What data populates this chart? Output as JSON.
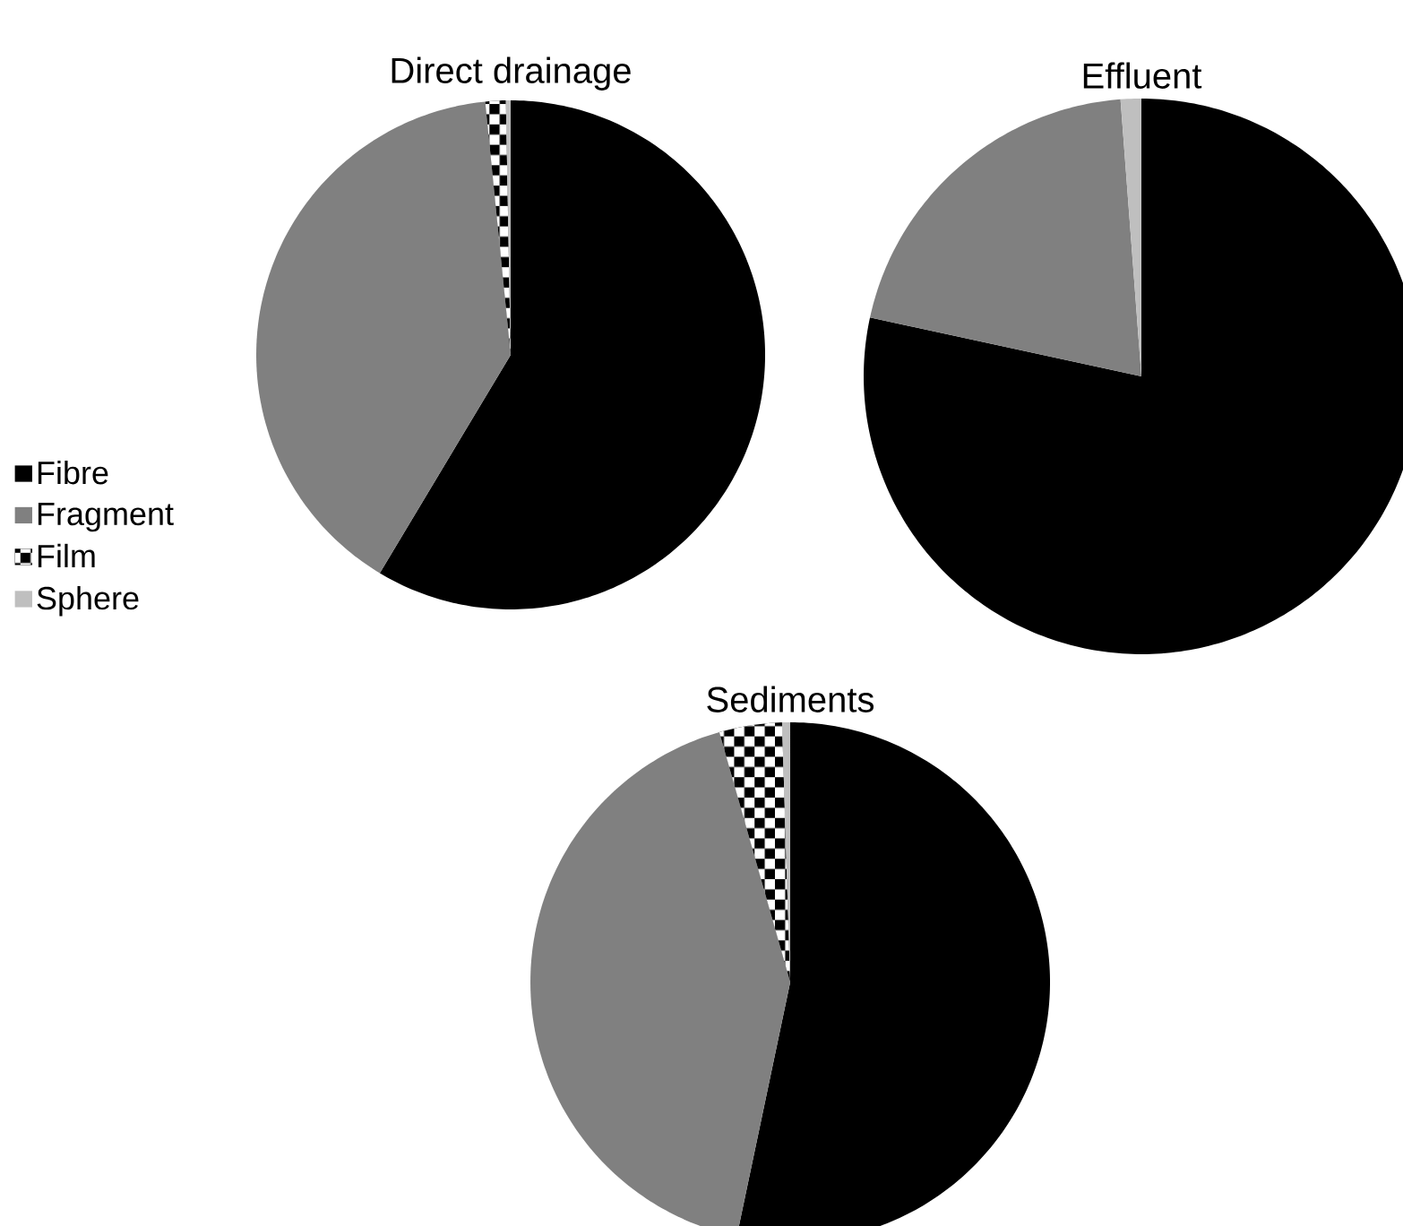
{
  "chart_data": [
    {
      "type": "pie",
      "title": "Direct drainage",
      "categories": [
        "Fibre",
        "Fragment",
        "Film",
        "Sphere"
      ],
      "values": [
        58.6,
        39.8,
        1.3,
        0.3
      ],
      "colors": [
        "#000000",
        "#808080",
        "#000000",
        "#bfbfbf"
      ],
      "legend": "left"
    },
    {
      "type": "pie",
      "title": "Effluent",
      "categories": [
        null,
        null,
        null,
        null
      ],
      "values": [
        78.4,
        20.4,
        0,
        1.2
      ],
      "colors": [
        "#000000",
        "#808080",
        "#000000",
        "#bfbfbf"
      ]
    },
    {
      "type": "pie",
      "title": "Sediments",
      "categories": [
        null,
        null,
        null,
        null
      ],
      "values": [
        53.3,
        42.3,
        3.9,
        0.5
      ],
      "colors": [
        "#000000",
        "#808080",
        "#000000",
        "#bfbfbf"
      ]
    }
  ]
}
